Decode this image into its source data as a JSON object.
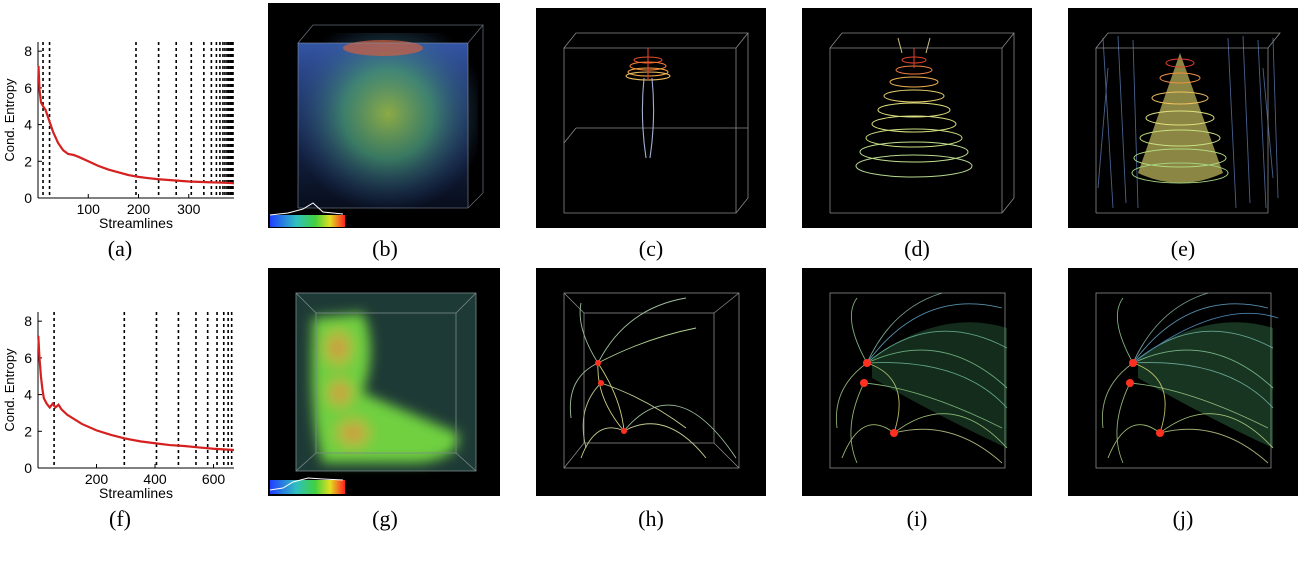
{
  "labels": [
    "(a)",
    "(b)",
    "(c)",
    "(d)",
    "(e)",
    "(f)",
    "(g)",
    "(h)",
    "(i)",
    "(j)"
  ],
  "chart_data": [
    {
      "type": "line",
      "xlabel": "Streamlines",
      "ylabel": "Cond. Entropy",
      "xlim": [
        0,
        390
      ],
      "ylim": [
        0,
        8.5
      ],
      "xticks": [
        100,
        200,
        300
      ],
      "yticks": [
        0,
        2,
        4,
        6,
        8
      ],
      "series_color": "#d62020",
      "x": [
        1,
        3,
        6,
        10,
        15,
        20,
        25,
        30,
        40,
        50,
        60,
        70,
        80,
        100,
        120,
        140,
        160,
        180,
        200,
        220,
        240,
        260,
        280,
        300,
        320,
        340,
        360,
        380,
        390
      ],
      "y": [
        7.2,
        5.9,
        5.2,
        5.0,
        4.8,
        4.4,
        4.0,
        3.6,
        3.0,
        2.6,
        2.4,
        2.35,
        2.25,
        2.0,
        1.75,
        1.55,
        1.4,
        1.25,
        1.15,
        1.08,
        1.02,
        0.98,
        0.94,
        0.9,
        0.88,
        0.86,
        0.84,
        0.82,
        0.8
      ],
      "dashed_x": [
        10,
        23,
        195,
        240,
        275,
        305,
        330,
        345,
        355,
        362,
        368,
        372,
        376,
        379,
        382,
        384,
        386,
        388
      ]
    },
    {
      "type": "line",
      "xlabel": "Streamlines",
      "ylabel": "Cond. Entropy",
      "xlim": [
        0,
        670
      ],
      "ylim": [
        0,
        8.5
      ],
      "xticks": [
        200,
        400,
        600
      ],
      "yticks": [
        0,
        2,
        4,
        6,
        8
      ],
      "series_color": "#d62020",
      "x": [
        1,
        5,
        10,
        15,
        20,
        30,
        40,
        50,
        60,
        70,
        80,
        100,
        120,
        150,
        200,
        250,
        300,
        350,
        400,
        450,
        500,
        550,
        600,
        650,
        670
      ],
      "y": [
        7.2,
        6.0,
        5.0,
        4.3,
        3.8,
        3.5,
        3.3,
        3.5,
        3.3,
        3.45,
        3.2,
        2.9,
        2.7,
        2.4,
        2.05,
        1.8,
        1.6,
        1.45,
        1.35,
        1.25,
        1.2,
        1.12,
        1.05,
        1.0,
        0.98
      ],
      "dashed_x": [
        55,
        295,
        405,
        480,
        540,
        580,
        612,
        635,
        650,
        662
      ]
    }
  ],
  "caption": ""
}
